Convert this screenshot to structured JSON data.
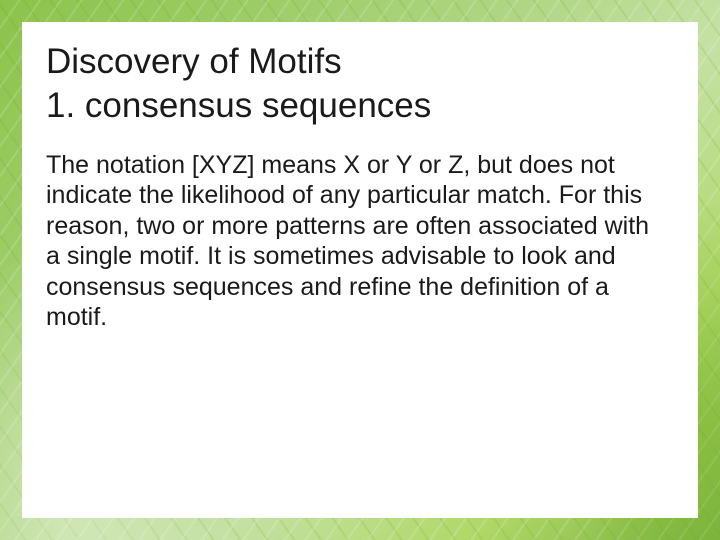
{
  "slide": {
    "title_line1": "Discovery of Motifs",
    "title_line2": "1. consensus sequences",
    "body": "The notation [XYZ] means X or Y or Z, but does not indicate the likelihood of any particular match. For this reason, two or more patterns are often associated with a single motif. It is sometimes advisable to look and consensus sequences and refine the definition of a motif."
  },
  "style": {
    "background_gradient_colors": [
      "#8bc34a",
      "#9ccc65",
      "#aed581",
      "#c5e1a5",
      "#b0d868",
      "#7cb342"
    ],
    "content_background": "#ffffff",
    "title_color": "#1a1a1a",
    "title_fontsize": 35,
    "body_color": "#1a1a1a",
    "body_fontsize": 25,
    "border_inset": 22
  }
}
